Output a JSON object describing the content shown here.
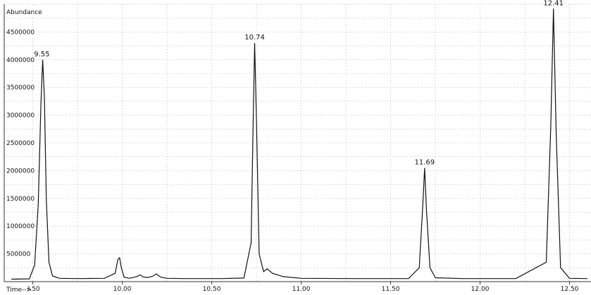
{
  "chart_data": {
    "type": "line",
    "title": "",
    "ylabel": "Abundance",
    "xlabel": "Time-->",
    "xlim": [
      9.34,
      12.62
    ],
    "ylim": [
      0,
      5000000
    ],
    "grid": true,
    "x_ticks": [
      9.5,
      10.0,
      10.5,
      11.0,
      11.5,
      12.0,
      12.5
    ],
    "x_tick_labels": [
      "9.50",
      "10.00",
      "10.50",
      "11.00",
      "11.50",
      "12.00",
      "12.50"
    ],
    "y_ticks": [
      500000,
      1000000,
      1500000,
      2000000,
      2500000,
      3000000,
      3500000,
      4000000,
      4500000
    ],
    "y_tick_labels": [
      "500000",
      "1000000",
      "1500000",
      "2000000",
      "2500000",
      "3000000",
      "3500000",
      "4000000",
      "4500000"
    ],
    "peaks": [
      {
        "rt": 9.55,
        "label": "9.55",
        "height": 4000000
      },
      {
        "rt": 10.74,
        "label": "10.74",
        "height": 4300000
      },
      {
        "rt": 11.69,
        "label": "11.69",
        "height": 2050000
      },
      {
        "rt": 12.41,
        "label": "12.41",
        "height": 4920000
      }
    ],
    "series": [
      {
        "x": [
          9.38,
          9.48,
          9.51,
          9.53,
          9.545,
          9.555,
          9.565,
          9.575,
          9.59,
          9.61,
          9.65,
          9.75,
          9.9,
          9.96,
          9.975,
          9.985,
          9.995,
          10.01,
          10.04,
          10.08,
          10.1,
          10.115,
          10.14,
          10.17,
          10.19,
          10.215,
          10.25,
          10.35,
          10.55,
          10.68,
          10.72,
          10.73,
          10.74,
          10.75,
          10.765,
          10.79,
          10.81,
          10.84,
          10.9,
          11.0,
          11.3,
          11.6,
          11.66,
          11.68,
          11.69,
          11.7,
          11.72,
          11.75,
          11.9,
          12.2,
          12.37,
          12.395,
          12.41,
          12.425,
          12.45,
          12.5,
          12.6
        ],
        "y": [
          45000,
          50000,
          300000,
          1400000,
          3200000,
          4000000,
          3300000,
          1500000,
          350000,
          100000,
          60000,
          55000,
          60000,
          150000,
          400000,
          430000,
          250000,
          80000,
          60000,
          90000,
          120000,
          85000,
          75000,
          95000,
          140000,
          80000,
          60000,
          55000,
          55000,
          65000,
          700000,
          2600000,
          4300000,
          2900000,
          500000,
          180000,
          230000,
          150000,
          90000,
          60000,
          55000,
          55000,
          250000,
          1400000,
          2050000,
          1300000,
          250000,
          70000,
          55000,
          55000,
          350000,
          2800000,
          4920000,
          2700000,
          250000,
          60000,
          55000
        ]
      }
    ]
  }
}
